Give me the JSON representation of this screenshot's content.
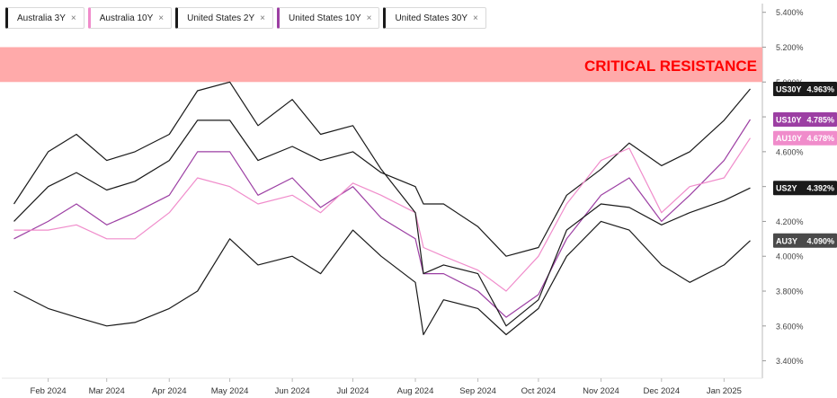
{
  "legend": [
    {
      "label": "Australia 3Y",
      "color": "#1a1a1a",
      "close": "×"
    },
    {
      "label": "Australia 10Y",
      "color": "#f08ccb",
      "close": "×"
    },
    {
      "label": "United States 2Y",
      "color": "#1a1a1a",
      "close": "×"
    },
    {
      "label": "United States 10Y",
      "color": "#9c3fa3",
      "close": "×"
    },
    {
      "label": "United States 30Y",
      "color": "#1a1a1a",
      "close": "×"
    }
  ],
  "annotation": {
    "label": "CRITICAL RESISTANCE",
    "band": [
      5.0,
      5.2
    ],
    "fill": "#ffaaaa",
    "text_color": "#ff0000"
  },
  "chart_data": {
    "type": "line",
    "xlabel": "",
    "ylabel": "",
    "x_ticks": [
      "Feb 2024",
      "Mar 2024",
      "Apr 2024",
      "May 2024",
      "Jun 2024",
      "Jul 2024",
      "Aug 2024",
      "Sep 2024",
      "Oct 2024",
      "Nov 2024",
      "Dec 2024",
      "Jan 2025"
    ],
    "y_ticks": [
      "3.400%",
      "3.600%",
      "3.800%",
      "4.000%",
      "4.200%",
      "4.400%",
      "4.600%",
      "4.800%",
      "5.000%",
      "5.200%",
      "5.400%"
    ],
    "ylim": [
      3.3,
      5.45
    ],
    "x_dates": [
      "2024-01-15",
      "2024-02-01",
      "2024-02-15",
      "2024-03-01",
      "2024-03-15",
      "2024-04-01",
      "2024-04-15",
      "2024-05-01",
      "2024-05-15",
      "2024-06-01",
      "2024-06-15",
      "2024-07-01",
      "2024-07-15",
      "2024-08-01",
      "2024-08-05",
      "2024-08-15",
      "2024-09-01",
      "2024-09-15",
      "2024-10-01",
      "2024-10-15",
      "2024-11-01",
      "2024-11-15",
      "2024-12-01",
      "2024-12-15",
      "2025-01-01",
      "2025-01-14"
    ],
    "series": [
      {
        "name": "US30Y",
        "color": "#1a1a1a",
        "last_label": "4.963%",
        "values": [
          4.2,
          4.4,
          4.48,
          4.38,
          4.43,
          4.55,
          4.78,
          4.78,
          4.55,
          4.63,
          4.55,
          4.6,
          4.48,
          4.4,
          4.3,
          4.3,
          4.17,
          4.0,
          4.05,
          4.35,
          4.5,
          4.65,
          4.52,
          4.6,
          4.78,
          4.96
        ]
      },
      {
        "name": "US10Y",
        "color": "#9c3fa3",
        "last_label": "4.785%",
        "values": [
          4.1,
          4.2,
          4.3,
          4.18,
          4.25,
          4.35,
          4.6,
          4.6,
          4.35,
          4.45,
          4.28,
          4.4,
          4.22,
          4.1,
          3.9,
          3.9,
          3.8,
          3.65,
          3.78,
          4.1,
          4.35,
          4.45,
          4.2,
          4.35,
          4.55,
          4.785
        ]
      },
      {
        "name": "AU10Y",
        "color": "#f08ccb",
        "last_label": "4.678%",
        "values": [
          4.15,
          4.15,
          4.18,
          4.1,
          4.1,
          4.25,
          4.45,
          4.4,
          4.3,
          4.35,
          4.25,
          4.42,
          4.35,
          4.25,
          4.05,
          4.0,
          3.92,
          3.8,
          4.0,
          4.3,
          4.55,
          4.62,
          4.25,
          4.4,
          4.45,
          4.678
        ]
      },
      {
        "name": "US2Y",
        "color": "#1a1a1a",
        "last_label": "4.392%",
        "values": [
          4.3,
          4.6,
          4.7,
          4.55,
          4.6,
          4.7,
          4.95,
          5.0,
          4.75,
          4.9,
          4.7,
          4.75,
          4.5,
          4.25,
          3.9,
          3.95,
          3.9,
          3.6,
          3.75,
          4.15,
          4.3,
          4.28,
          4.18,
          4.25,
          4.32,
          4.392
        ]
      },
      {
        "name": "AU3Y",
        "color": "#1a1a1a",
        "last_label": "4.090%",
        "values": [
          3.8,
          3.7,
          3.65,
          3.6,
          3.62,
          3.7,
          3.8,
          4.1,
          3.95,
          4.0,
          3.9,
          4.15,
          4.0,
          3.85,
          3.55,
          3.75,
          3.7,
          3.55,
          3.7,
          4.0,
          4.2,
          4.15,
          3.95,
          3.85,
          3.95,
          4.09
        ]
      }
    ]
  }
}
